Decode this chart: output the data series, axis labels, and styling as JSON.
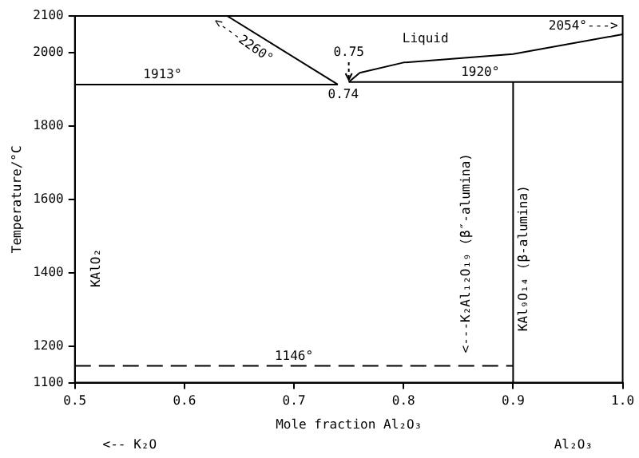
{
  "chart_data": {
    "type": "line",
    "xlabel": "Mole fraction Al₂O₃",
    "ylabel": "Temperature/°C",
    "xlim": [
      0.5,
      1.0
    ],
    "xticks": [
      0.5,
      0.6,
      0.7,
      0.8,
      0.9,
      {
        "value": 1.0,
        "label": "1.0"
      }
    ],
    "ylim": [
      1100,
      2100
    ],
    "yticks": [
      1100,
      1200,
      1400,
      1600,
      1800,
      2000,
      2100
    ],
    "series": [
      {
        "color": "#000000",
        "x": [
          0.639,
          0.74
        ],
        "values": [
          2100,
          1913
        ]
      },
      {
        "color": "#000000",
        "x": [
          0.75,
          0.76,
          0.8,
          0.9,
          1.0
        ],
        "values": [
          1920,
          1945,
          1973,
          1996,
          2050
        ]
      },
      {
        "color": "#000000",
        "x": [
          0.5,
          0.74
        ],
        "values": [
          1913,
          1913
        ]
      },
      {
        "color": "#000000",
        "x": [
          0.75,
          1.0
        ],
        "values": [
          1920,
          1920
        ]
      },
      {
        "color": "#000000",
        "x": [
          0.9,
          0.9
        ],
        "values": [
          1100,
          1920
        ]
      },
      {
        "color": "#000000",
        "x": [
          0.5,
          0.9
        ],
        "values": [
          1146,
          1146
        ],
        "line_style": "dashed"
      }
    ],
    "annotations": [
      {
        "text": "<---2260°",
        "x": 0.66,
        "y": 2061
      },
      {
        "text": "1913°",
        "x": 0.58,
        "y": 1913
      },
      {
        "text": "1920°",
        "x": 0.87,
        "y": 1920
      },
      {
        "text": "2054°--->",
        "x": 1.0,
        "y": 2050
      },
      {
        "text": "1146°",
        "x": 0.7,
        "y": 1146
      },
      {
        "text": "<---K₂Al₁₂O₁₉ (β″-alumina)",
        "x": 0.857,
        "y": 1146
      },
      "0.75",
      "0.74",
      "Liquid",
      "KAlO₂",
      "KAl₉O₁₄ (β-alumina)",
      "<-- K₂O",
      "Al₂O₃"
    ]
  }
}
